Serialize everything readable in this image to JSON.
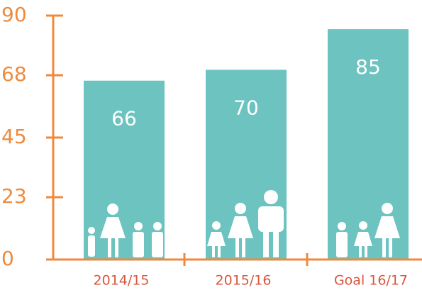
{
  "chart_data": {
    "type": "bar",
    "categories": [
      "2014/15",
      "2015/16",
      "Goal 16/17"
    ],
    "values": [
      66,
      70,
      85
    ],
    "color": "#6cc3c0",
    "axis_color": "#ee8a3c",
    "ylim": [
      0,
      90
    ],
    "yticks": [
      0,
      23,
      45,
      68,
      90
    ]
  }
}
